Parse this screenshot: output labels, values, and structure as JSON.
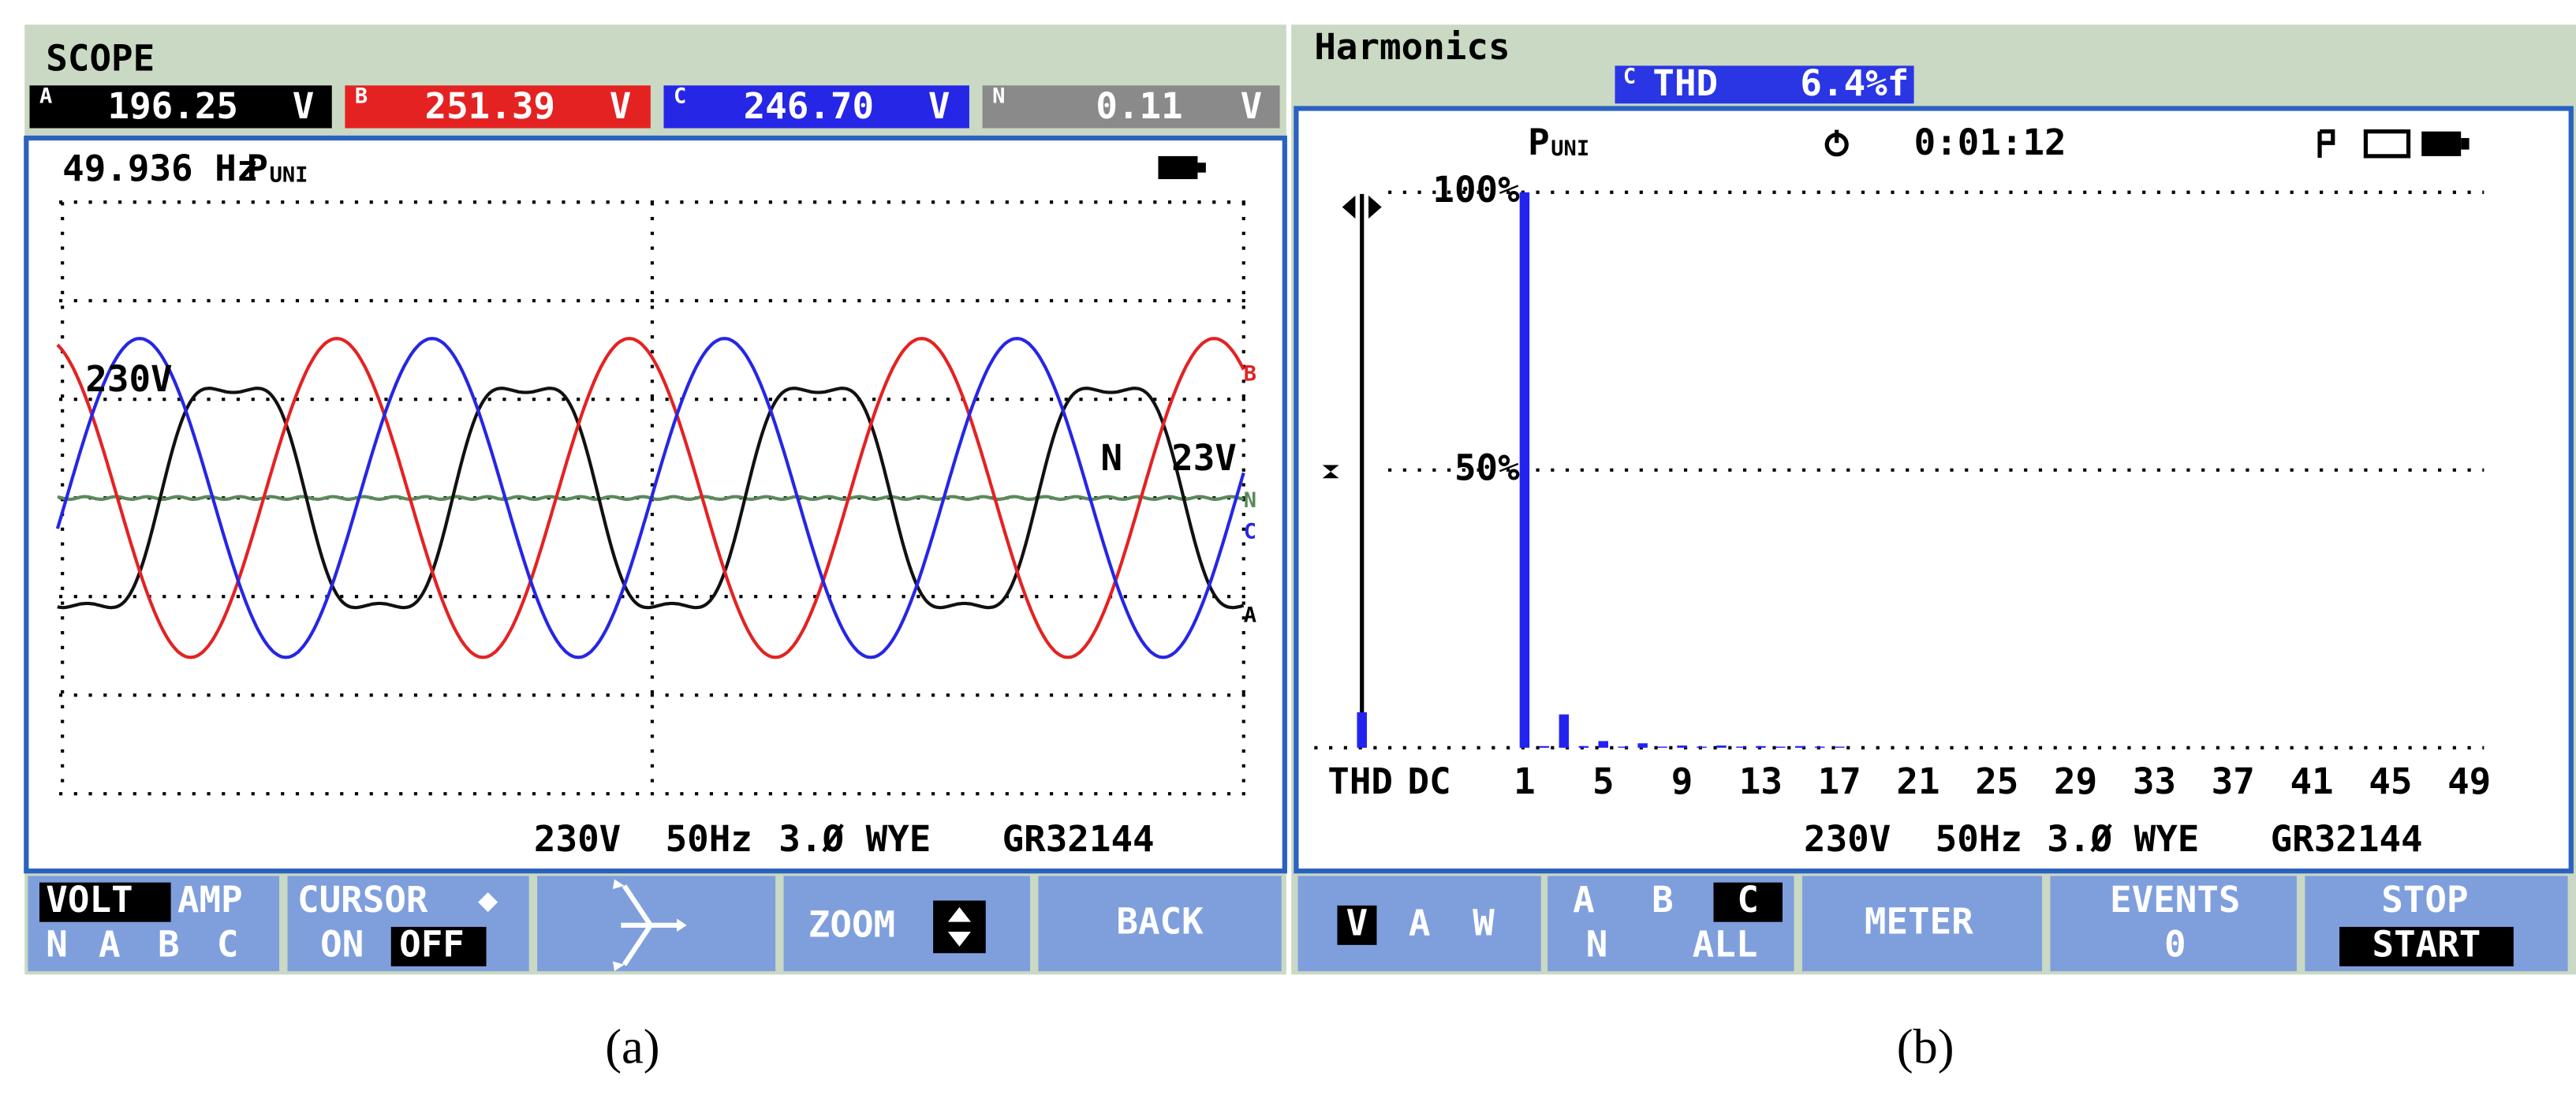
{
  "screen_a": {
    "title": "SCOPE",
    "readouts": [
      {
        "phase": "A",
        "value": "196.25",
        "unit": "V"
      },
      {
        "phase": "B",
        "value": "251.39",
        "unit": "V"
      },
      {
        "phase": "C",
        "value": "246.70",
        "unit": "V"
      },
      {
        "phase": "N",
        "value": "0.11",
        "unit": "V"
      }
    ],
    "frequency": "49.936 Hz",
    "mode": "P",
    "mode_sub": "UNI",
    "trace_labels": [
      "230V",
      "N",
      "23V"
    ],
    "channel_labels": [
      "B",
      "N",
      "C",
      "A"
    ],
    "status": [
      "230V",
      "50Hz",
      "3.Ø WYE",
      "GR32144"
    ],
    "buttons": [
      {
        "top": [
          "VOLT",
          "AMP"
        ],
        "bottom": [
          "N",
          "A",
          "B",
          "C"
        ]
      },
      {
        "top": [
          "CURSOR"
        ],
        "bottom": [
          "ON",
          "OFF"
        ]
      },
      {
        "top": [
          "ZOOM"
        ]
      },
      {
        "top": [
          "BACK"
        ]
      }
    ],
    "caption": "(a)"
  },
  "screen_b": {
    "title": "Harmonics",
    "summary": {
      "phase": "C",
      "label": "THD",
      "value": "6.4%f"
    },
    "mode": "P",
    "mode_sub": "UNI",
    "timer": "0:01:12",
    "chart_data": {
      "type": "bar",
      "categories": [
        "THD",
        "DC",
        "1",
        null,
        null,
        null,
        "5",
        null,
        null,
        null,
        "9",
        null,
        null,
        null,
        "13",
        null,
        null,
        null,
        "17",
        null,
        null,
        null,
        "21",
        null,
        null,
        null,
        "25",
        null,
        null,
        null,
        "29",
        null,
        null,
        null,
        "33",
        null,
        null,
        null,
        "37",
        null,
        null,
        null,
        "41",
        null,
        null,
        null,
        "45",
        null,
        null,
        null,
        "49",
        null
      ],
      "values": [
        6.4,
        0,
        100,
        0.3,
        6,
        0.3,
        1.2,
        0.2,
        0.8,
        0.2,
        0.4,
        0.2,
        0.4,
        0.2,
        0.3,
        0.2,
        0.3,
        0.2,
        0.2,
        0,
        0,
        0,
        0,
        0,
        0,
        0,
        0,
        0,
        0,
        0,
        0,
        0,
        0,
        0,
        0,
        0,
        0,
        0,
        0,
        0,
        0,
        0,
        0,
        0,
        0,
        0,
        0,
        0,
        0,
        0,
        0,
        0
      ],
      "color": "#2323f0",
      "ylim": [
        0,
        100
      ],
      "yticks": [
        {
          "value": 50,
          "label": "50%"
        },
        {
          "value": 100,
          "label": "100%"
        }
      ],
      "grid": true
    },
    "status": [
      "230V",
      "50Hz",
      "3.Ø WYE",
      "GR32144"
    ],
    "buttons": [
      {
        "top": [
          "V",
          "A",
          "W"
        ]
      },
      {
        "top": [
          "A",
          "B",
          "C"
        ],
        "bottom": [
          "N",
          "ALL"
        ]
      },
      {
        "top": [
          "METER"
        ]
      },
      {
        "top": [
          "EVENTS"
        ],
        "bottom": [
          "0"
        ]
      },
      {
        "top": [
          "STOP"
        ],
        "bottom": [
          "START"
        ]
      }
    ],
    "caption": "(b)"
  }
}
